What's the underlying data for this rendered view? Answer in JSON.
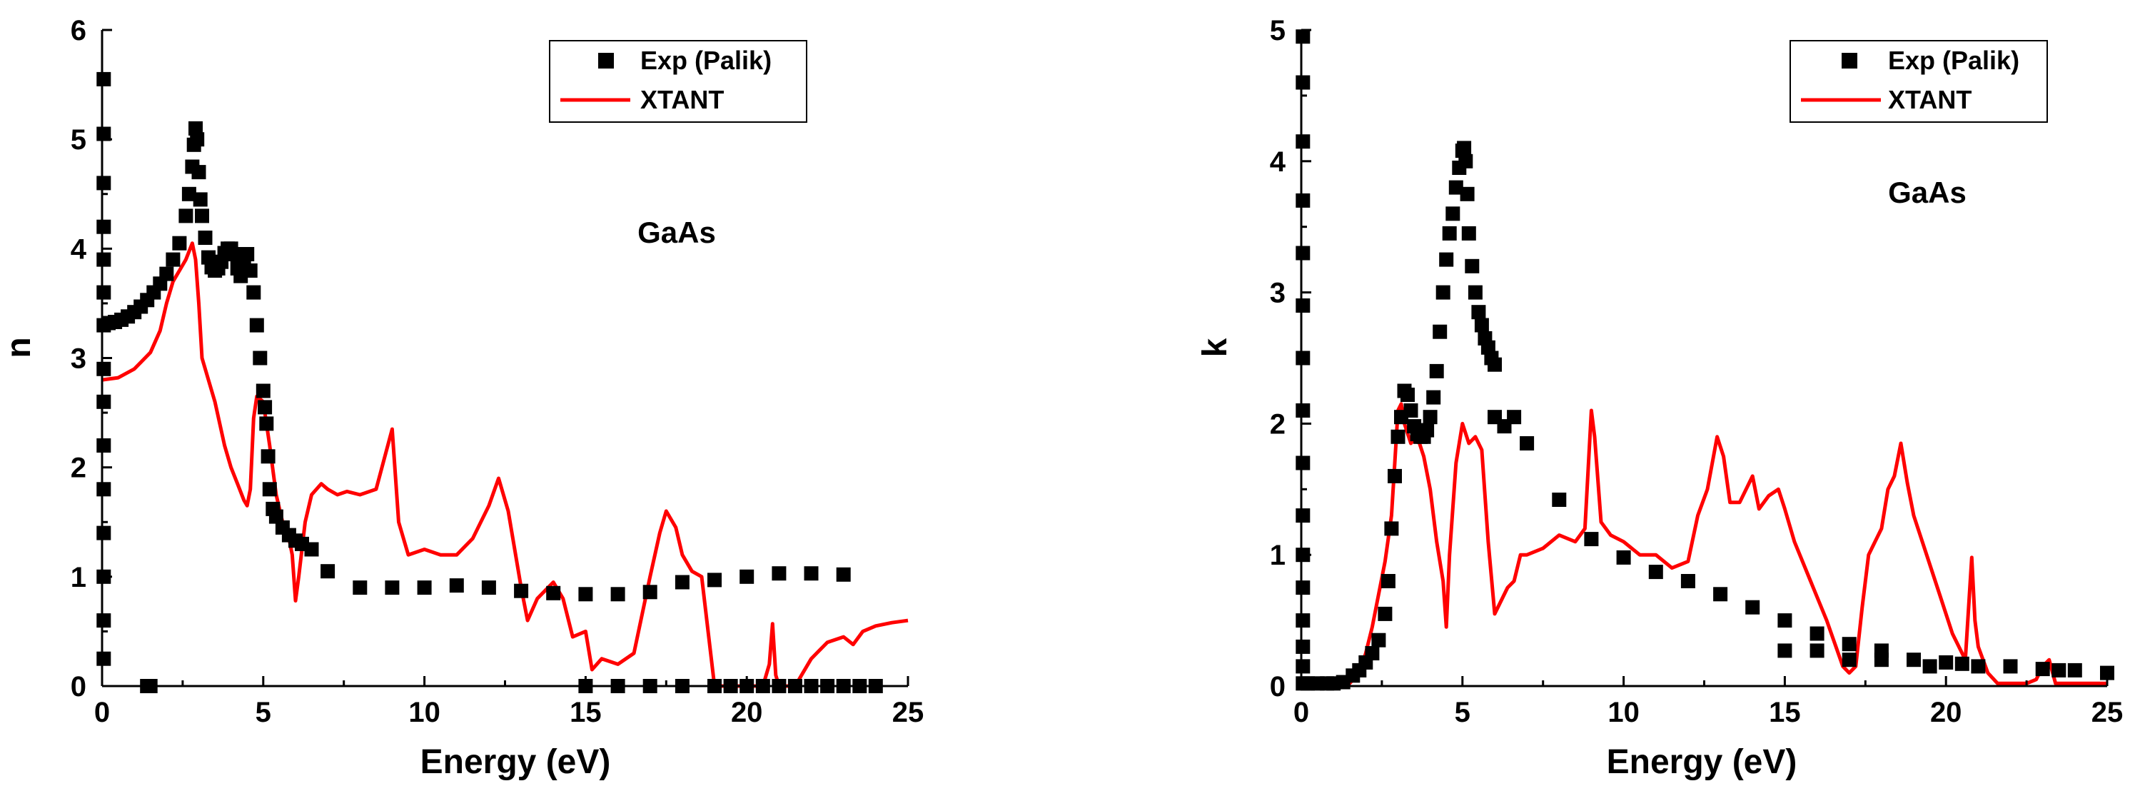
{
  "chart_data": [
    {
      "type": "scatter",
      "xlabel": "Energy (eV)",
      "ylabel": "n",
      "xlim": [
        0,
        25
      ],
      "ylim": [
        0,
        6
      ],
      "xticks": [
        "0",
        "5",
        "10",
        "15",
        "20",
        "25"
      ],
      "yticks": [
        "0",
        "1",
        "2",
        "3",
        "4",
        "5",
        "6"
      ],
      "annotation": "GaAs",
      "legend": {
        "placement": "top-right",
        "entries": [
          "Exp (Palik)",
          "XTANT"
        ]
      },
      "series": [
        {
          "name": "Exp (Palik)",
          "color": "#000000",
          "marker": "square",
          "x": [
            0.05,
            0.05,
            0.05,
            0.05,
            0.05,
            0.05,
            0.05,
            0.05,
            0.05,
            0.05,
            0.05,
            0.05,
            0.05,
            0.05,
            0.05,
            0.2,
            0.4,
            0.6,
            0.8,
            1.0,
            1.2,
            1.4,
            1.6,
            1.8,
            2.0,
            2.2,
            2.4,
            2.6,
            2.7,
            2.8,
            2.85,
            2.9,
            2.95,
            3.0,
            3.05,
            3.1,
            3.2,
            3.3,
            3.4,
            3.5,
            3.6,
            3.7,
            3.8,
            3.9,
            4.0,
            4.1,
            4.2,
            4.3,
            4.4,
            4.5,
            4.6,
            4.7,
            4.8,
            4.9,
            5.0,
            5.05,
            5.1,
            5.15,
            5.2,
            5.3,
            5.4,
            5.6,
            5.8,
            6.0,
            6.2,
            6.5,
            7.0,
            8.0,
            9.0,
            10.0,
            11.0,
            12.0,
            13.0,
            14.0,
            15.0,
            16.0,
            17.0,
            18.0,
            19.0,
            20.0,
            21.0,
            22.0,
            23.0,
            1.4,
            1.5,
            15.0,
            16.0,
            17.0,
            18.0,
            19.0,
            19.5,
            20.0,
            20.5,
            21.0,
            21.5,
            22.0,
            22.5,
            23.0,
            23.5,
            24.0
          ],
          "y": [
            5.55,
            5.05,
            4.6,
            4.2,
            3.9,
            3.6,
            3.3,
            2.9,
            2.6,
            2.2,
            1.8,
            1.4,
            1.0,
            0.6,
            0.25,
            3.32,
            3.33,
            3.35,
            3.38,
            3.42,
            3.47,
            3.53,
            3.6,
            3.68,
            3.77,
            3.9,
            4.05,
            4.3,
            4.5,
            4.75,
            4.95,
            5.1,
            5.0,
            4.7,
            4.45,
            4.3,
            4.1,
            3.92,
            3.83,
            3.8,
            3.82,
            3.88,
            3.96,
            4.0,
            4.0,
            3.95,
            3.82,
            3.75,
            3.9,
            3.95,
            3.8,
            3.6,
            3.3,
            3.0,
            2.7,
            2.55,
            2.4,
            2.1,
            1.8,
            1.62,
            1.55,
            1.45,
            1.38,
            1.33,
            1.3,
            1.25,
            1.05,
            0.9,
            0.9,
            0.9,
            0.92,
            0.9,
            0.87,
            0.85,
            0.84,
            0.84,
            0.86,
            0.95,
            0.97,
            1.0,
            1.03,
            1.03,
            1.02,
            0.0,
            0.0,
            0.0,
            0.0,
            0.0,
            0.0,
            0.0,
            0.0,
            0.0,
            0.0,
            0.0,
            0.0,
            0.0,
            0.0,
            0.0,
            0.0,
            0.0
          ]
        },
        {
          "name": "XTANT",
          "color": "#ff0000",
          "marker": "line",
          "x": [
            0,
            0.5,
            1.0,
            1.5,
            1.8,
            2.0,
            2.2,
            2.4,
            2.6,
            2.8,
            2.9,
            3.0,
            3.1,
            3.3,
            3.5,
            3.8,
            4.0,
            4.2,
            4.4,
            4.5,
            4.6,
            4.7,
            4.8,
            5.0,
            5.2,
            5.4,
            5.6,
            5.8,
            5.9,
            6.0,
            6.1,
            6.3,
            6.5,
            6.8,
            7.0,
            7.3,
            7.6,
            8.0,
            8.5,
            9.0,
            9.2,
            9.5,
            10.0,
            10.5,
            11.0,
            11.5,
            12.0,
            12.3,
            12.6,
            13.0,
            13.2,
            13.5,
            14.0,
            14.3,
            14.6,
            15.0,
            15.2,
            15.5,
            16.0,
            16.5,
            17.0,
            17.3,
            17.5,
            17.8,
            18.0,
            18.3,
            18.6,
            18.8,
            19.0,
            20.0,
            20.5,
            20.7,
            20.8,
            20.9,
            21.0,
            21.5,
            22.0,
            22.5,
            23.0,
            23.3,
            23.6,
            24.0,
            24.5,
            25.0
          ],
          "y": [
            2.8,
            2.82,
            2.9,
            3.05,
            3.25,
            3.5,
            3.7,
            3.8,
            3.9,
            4.05,
            3.9,
            3.5,
            3.0,
            2.8,
            2.6,
            2.2,
            2.0,
            1.85,
            1.7,
            1.65,
            1.8,
            2.45,
            2.65,
            2.6,
            2.2,
            1.75,
            1.5,
            1.35,
            1.2,
            0.78,
            1.0,
            1.5,
            1.75,
            1.85,
            1.8,
            1.75,
            1.78,
            1.75,
            1.8,
            2.35,
            1.5,
            1.2,
            1.25,
            1.2,
            1.2,
            1.35,
            1.65,
            1.9,
            1.6,
            0.9,
            0.6,
            0.8,
            0.95,
            0.8,
            0.45,
            0.5,
            0.15,
            0.25,
            0.2,
            0.3,
            1.0,
            1.4,
            1.6,
            1.45,
            1.2,
            1.05,
            1.0,
            0.5,
            0.0,
            0.0,
            0.0,
            0.2,
            0.57,
            0.1,
            0.0,
            0.0,
            0.25,
            0.4,
            0.45,
            0.38,
            0.5,
            0.55,
            0.58,
            0.6
          ]
        }
      ]
    },
    {
      "type": "scatter",
      "xlabel": "Energy (eV)",
      "ylabel": "k",
      "xlim": [
        0,
        25
      ],
      "ylim": [
        0,
        5
      ],
      "xticks": [
        "0",
        "5",
        "10",
        "15",
        "20",
        "25"
      ],
      "yticks": [
        "0",
        "1",
        "2",
        "3",
        "4",
        "5"
      ],
      "annotation": "GaAs",
      "legend": {
        "placement": "top-right",
        "entries": [
          "Exp (Palik)",
          "XTANT"
        ]
      },
      "series": [
        {
          "name": "Exp (Palik)",
          "color": "#000000",
          "marker": "square",
          "x": [
            0.05,
            0.05,
            0.05,
            0.05,
            0.05,
            0.05,
            0.05,
            0.05,
            0.05,
            0.05,
            0.05,
            0.05,
            0.05,
            0.05,
            0.05,
            0.05,
            0.2,
            0.5,
            0.8,
            1.0,
            1.3,
            1.6,
            1.8,
            2.0,
            2.2,
            2.4,
            2.6,
            2.7,
            2.8,
            2.9,
            3.0,
            3.1,
            3.2,
            3.3,
            3.4,
            3.5,
            3.6,
            3.7,
            3.8,
            3.9,
            4.0,
            4.1,
            4.2,
            4.3,
            4.4,
            4.5,
            4.6,
            4.7,
            4.8,
            4.9,
            5.0,
            5.05,
            5.1,
            5.15,
            5.2,
            5.3,
            5.4,
            5.5,
            5.6,
            5.7,
            5.8,
            5.9,
            6.0,
            6.0,
            6.3,
            6.6,
            7.0,
            8.0,
            9.0,
            10.0,
            11.0,
            12.0,
            13.0,
            14.0,
            15.0,
            15.0,
            16.0,
            16.0,
            17.0,
            17.0,
            18.0,
            18.0,
            19.0,
            19.5,
            20.0,
            20.5,
            21.0,
            22.0,
            23.0,
            23.5,
            24.0,
            25.0
          ],
          "y": [
            4.95,
            4.6,
            4.15,
            3.7,
            3.3,
            2.9,
            2.5,
            2.1,
            1.7,
            1.3,
            1.0,
            0.75,
            0.5,
            0.3,
            0.15,
            0.02,
            0.02,
            0.02,
            0.02,
            0.02,
            0.03,
            0.08,
            0.12,
            0.18,
            0.25,
            0.35,
            0.55,
            0.8,
            1.2,
            1.6,
            1.9,
            2.05,
            2.25,
            2.22,
            2.1,
            1.98,
            1.92,
            1.9,
            1.9,
            1.95,
            2.05,
            2.2,
            2.4,
            2.7,
            3.0,
            3.25,
            3.45,
            3.6,
            3.8,
            3.95,
            4.08,
            4.1,
            4.0,
            3.75,
            3.45,
            3.2,
            3.0,
            2.85,
            2.75,
            2.65,
            2.58,
            2.5,
            2.45,
            2.05,
            1.98,
            2.05,
            1.85,
            1.42,
            1.12,
            0.98,
            0.87,
            0.8,
            0.7,
            0.6,
            0.5,
            0.27,
            0.4,
            0.27,
            0.32,
            0.2,
            0.27,
            0.2,
            0.2,
            0.15,
            0.18,
            0.17,
            0.15,
            0.15,
            0.13,
            0.12,
            0.12,
            0.1
          ]
        },
        {
          "name": "XTANT",
          "color": "#ff0000",
          "marker": "line",
          "x": [
            0,
            1.5,
            1.8,
            2.0,
            2.2,
            2.4,
            2.6,
            2.8,
            2.9,
            3.0,
            3.1,
            3.2,
            3.4,
            3.6,
            3.8,
            4.0,
            4.2,
            4.4,
            4.5,
            4.6,
            4.8,
            5.0,
            5.2,
            5.4,
            5.6,
            5.8,
            6.0,
            6.2,
            6.4,
            6.6,
            6.8,
            7.0,
            7.5,
            8.0,
            8.5,
            8.8,
            9.0,
            9.1,
            9.3,
            9.6,
            10.0,
            10.5,
            11.0,
            11.5,
            12.0,
            12.3,
            12.6,
            12.9,
            13.1,
            13.3,
            13.6,
            13.8,
            14.0,
            14.2,
            14.5,
            14.8,
            15.0,
            15.3,
            15.8,
            16.3,
            16.8,
            17.0,
            17.2,
            17.4,
            17.6,
            17.8,
            18.0,
            18.2,
            18.4,
            18.6,
            18.8,
            19.0,
            19.4,
            19.8,
            20.2,
            20.6,
            20.8,
            20.9,
            21.0,
            21.3,
            21.6,
            21.8,
            22.0,
            22.5,
            22.8,
            23.0,
            23.2,
            23.4,
            25.0
          ],
          "y": [
            0.02,
            0.02,
            0.1,
            0.25,
            0.45,
            0.7,
            0.95,
            1.3,
            1.7,
            2.1,
            2.15,
            2.0,
            1.85,
            1.9,
            1.75,
            1.5,
            1.1,
            0.8,
            0.45,
            1.0,
            1.7,
            2.0,
            1.85,
            1.9,
            1.8,
            1.1,
            0.55,
            0.65,
            0.75,
            0.8,
            1.0,
            1.0,
            1.05,
            1.15,
            1.1,
            1.2,
            2.1,
            1.9,
            1.25,
            1.15,
            1.1,
            1.0,
            1.0,
            0.9,
            0.95,
            1.3,
            1.5,
            1.9,
            1.75,
            1.4,
            1.4,
            1.5,
            1.6,
            1.35,
            1.45,
            1.5,
            1.35,
            1.1,
            0.8,
            0.5,
            0.15,
            0.1,
            0.15,
            0.6,
            1.0,
            1.1,
            1.2,
            1.5,
            1.6,
            1.85,
            1.55,
            1.3,
            1.0,
            0.7,
            0.4,
            0.2,
            0.98,
            0.5,
            0.3,
            0.1,
            0.02,
            0.02,
            0.02,
            0.02,
            0.05,
            0.15,
            0.2,
            0.02,
            0.02
          ]
        }
      ]
    }
  ]
}
